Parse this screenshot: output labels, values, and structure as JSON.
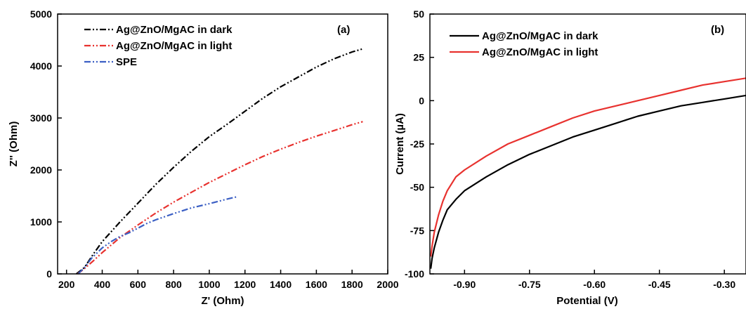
{
  "chart_data": [
    {
      "type": "line",
      "panel_label": "(a)",
      "xlabel": "Z' (Ohm)",
      "ylabel": "Z'' (Ohm)",
      "xlim": [
        150,
        2000
      ],
      "ylim": [
        0,
        5000
      ],
      "xticks": [
        200,
        400,
        600,
        800,
        1000,
        1200,
        1400,
        1600,
        1800,
        2000
      ],
      "yticks": [
        0,
        1000,
        2000,
        3000,
        4000,
        5000
      ],
      "legend_position": "top-left",
      "series": [
        {
          "name": "Ag@ZnO/MgAC in dark",
          "color": "#000000",
          "dash": "dash-dot-dot",
          "points": [
            [
              255,
              0
            ],
            [
              300,
              120
            ],
            [
              350,
              380
            ],
            [
              400,
              620
            ],
            [
              500,
              1000
            ],
            [
              600,
              1360
            ],
            [
              700,
              1720
            ],
            [
              800,
              2050
            ],
            [
              900,
              2360
            ],
            [
              1000,
              2640
            ],
            [
              1100,
              2880
            ],
            [
              1200,
              3130
            ],
            [
              1300,
              3380
            ],
            [
              1400,
              3600
            ],
            [
              1500,
              3790
            ],
            [
              1600,
              3980
            ],
            [
              1700,
              4140
            ],
            [
              1800,
              4270
            ],
            [
              1860,
              4330
            ]
          ]
        },
        {
          "name": "Ag@ZnO/MgAC in light",
          "color": "#e8322f",
          "dash": "dash-dot-dot",
          "points": [
            [
              262,
              0
            ],
            [
              300,
              100
            ],
            [
              350,
              250
            ],
            [
              400,
              410
            ],
            [
              500,
              700
            ],
            [
              600,
              940
            ],
            [
              700,
              1170
            ],
            [
              800,
              1380
            ],
            [
              900,
              1570
            ],
            [
              1000,
              1760
            ],
            [
              1100,
              1930
            ],
            [
              1200,
              2100
            ],
            [
              1300,
              2260
            ],
            [
              1400,
              2400
            ],
            [
              1500,
              2530
            ],
            [
              1600,
              2650
            ],
            [
              1700,
              2760
            ],
            [
              1800,
              2870
            ],
            [
              1860,
              2930
            ]
          ]
        },
        {
          "name": "SPE",
          "color": "#3b5fc4",
          "dash": "dash-dot-dot",
          "points": [
            [
              265,
              0
            ],
            [
              300,
              120
            ],
            [
              340,
              300
            ],
            [
              400,
              500
            ],
            [
              450,
              620
            ],
            [
              500,
              720
            ],
            [
              550,
              790
            ],
            [
              600,
              880
            ],
            [
              650,
              970
            ],
            [
              700,
              1040
            ],
            [
              800,
              1160
            ],
            [
              900,
              1270
            ],
            [
              1000,
              1350
            ],
            [
              1100,
              1440
            ],
            [
              1150,
              1480
            ]
          ]
        }
      ]
    },
    {
      "type": "line",
      "panel_label": "(b)",
      "xlabel": "Potential (V)",
      "ylabel": "Current (µA)",
      "xlim": [
        -0.98,
        -0.25
      ],
      "ylim": [
        -100,
        50
      ],
      "xticks": [
        -0.9,
        -0.75,
        -0.6,
        -0.45,
        -0.3
      ],
      "xtick_labels": [
        "-0.90",
        "-0.75",
        "-0.60",
        "-0.45",
        "-0.30"
      ],
      "yticks": [
        -100,
        -75,
        -50,
        -25,
        0,
        25,
        50
      ],
      "legend_position": "top-left",
      "series": [
        {
          "name": "Ag@ZnO/MgAC in dark",
          "color": "#000000",
          "dash": "solid",
          "points": [
            [
              -0.978,
              -97
            ],
            [
              -0.975,
              -91
            ],
            [
              -0.97,
              -85
            ],
            [
              -0.96,
              -76
            ],
            [
              -0.95,
              -69
            ],
            [
              -0.94,
              -63
            ],
            [
              -0.92,
              -57
            ],
            [
              -0.9,
              -52
            ],
            [
              -0.85,
              -44
            ],
            [
              -0.8,
              -37
            ],
            [
              -0.75,
              -31
            ],
            [
              -0.7,
              -26
            ],
            [
              -0.65,
              -21
            ],
            [
              -0.6,
              -17
            ],
            [
              -0.55,
              -13
            ],
            [
              -0.5,
              -9
            ],
            [
              -0.45,
              -6
            ],
            [
              -0.4,
              -3
            ],
            [
              -0.35,
              -1
            ],
            [
              -0.3,
              1
            ],
            [
              -0.25,
              3
            ]
          ]
        },
        {
          "name": "Ag@ZnO/MgAC in light",
          "color": "#e8322f",
          "dash": "solid",
          "points": [
            [
              -0.978,
              -90
            ],
            [
              -0.975,
              -84
            ],
            [
              -0.97,
              -76
            ],
            [
              -0.96,
              -66
            ],
            [
              -0.95,
              -58
            ],
            [
              -0.94,
              -52
            ],
            [
              -0.92,
              -44
            ],
            [
              -0.9,
              -40
            ],
            [
              -0.85,
              -32
            ],
            [
              -0.8,
              -25
            ],
            [
              -0.75,
              -20
            ],
            [
              -0.7,
              -15
            ],
            [
              -0.65,
              -10
            ],
            [
              -0.6,
              -6
            ],
            [
              -0.55,
              -3
            ],
            [
              -0.5,
              0
            ],
            [
              -0.45,
              3
            ],
            [
              -0.4,
              6
            ],
            [
              -0.35,
              9
            ],
            [
              -0.3,
              11
            ],
            [
              -0.25,
              13
            ]
          ]
        }
      ]
    }
  ]
}
